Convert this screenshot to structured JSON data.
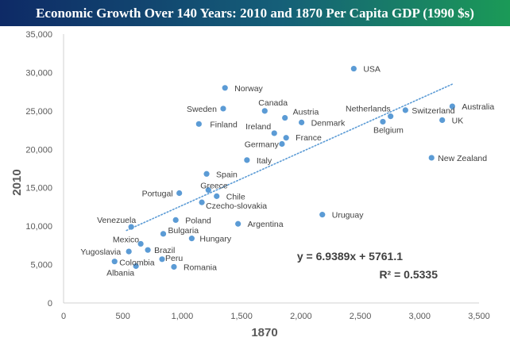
{
  "title": "Economic Growth Over 140 Years: 2010 and 1870 Per Capita GDP (1990 $s)",
  "colors": {
    "banner_start": "#0e2a66",
    "banner_end": "#1b9a57",
    "point": "#5b9bd5",
    "trend": "#5b9bd5",
    "axis_text": "#595959"
  },
  "chart_data": {
    "type": "scatter",
    "xlabel": "1870",
    "ylabel": "2010",
    "xlim": [
      0,
      3500
    ],
    "ylim": [
      0,
      35000
    ],
    "xticks": [
      0,
      500,
      1000,
      1500,
      2000,
      2500,
      3000,
      3500
    ],
    "yticks": [
      0,
      5000,
      10000,
      15000,
      20000,
      25000,
      30000,
      35000
    ],
    "x_tick_labels": [
      "0",
      "500",
      "1,000",
      "1,500",
      "2,000",
      "2,500",
      "3,000",
      "3,500"
    ],
    "y_tick_labels": [
      "0",
      "5,000",
      "10,000",
      "15,000",
      "20,000",
      "25,000",
      "30,000",
      "35,000"
    ],
    "grid": false,
    "legend": "none",
    "trendline": {
      "style": "dotted",
      "slope": 6.9389,
      "intercept": 5761.1,
      "x_range": [
        530,
        3280
      ],
      "equation": "y = 6.9389x + 5761.1",
      "r_squared": "R² = 0.5335"
    },
    "points": [
      {
        "label": "USA",
        "x": 2445,
        "y": 30500
      },
      {
        "label": "Norway",
        "x": 1360,
        "y": 28000
      },
      {
        "label": "Australia",
        "x": 3275,
        "y": 25600
      },
      {
        "label": "Sweden",
        "x": 1345,
        "y": 25300
      },
      {
        "label": "Switzerland",
        "x": 2880,
        "y": 25100
      },
      {
        "label": "Canada",
        "x": 1695,
        "y": 25000
      },
      {
        "label": "Netherlands",
        "x": 2755,
        "y": 24300
      },
      {
        "label": "Austria",
        "x": 1865,
        "y": 24100
      },
      {
        "label": "UK",
        "x": 3190,
        "y": 23800
      },
      {
        "label": "Belgium",
        "x": 2690,
        "y": 23600
      },
      {
        "label": "Denmark",
        "x": 2005,
        "y": 23500
      },
      {
        "label": "Finland",
        "x": 1140,
        "y": 23300
      },
      {
        "label": "Ireland",
        "x": 1775,
        "y": 22100
      },
      {
        "label": "France",
        "x": 1875,
        "y": 21500
      },
      {
        "label": "Germany",
        "x": 1840,
        "y": 20700
      },
      {
        "label": "New Zealand",
        "x": 3100,
        "y": 18900
      },
      {
        "label": "Italy",
        "x": 1545,
        "y": 18600
      },
      {
        "label": "Spain",
        "x": 1205,
        "y": 16800
      },
      {
        "label": "Greece",
        "x": 1220,
        "y": 14700
      },
      {
        "label": "Portugal",
        "x": 975,
        "y": 14300
      },
      {
        "label": "Chile",
        "x": 1290,
        "y": 13900
      },
      {
        "label": "Czecho-slovakia",
        "x": 1165,
        "y": 13100
      },
      {
        "label": "Uruguay",
        "x": 2180,
        "y": 11500
      },
      {
        "label": "Poland",
        "x": 945,
        "y": 10800
      },
      {
        "label": "Argentina",
        "x": 1470,
        "y": 10300
      },
      {
        "label": "Venezuela",
        "x": 570,
        "y": 9900
      },
      {
        "label": "Bulgaria",
        "x": 840,
        "y": 9000
      },
      {
        "label": "Hungary",
        "x": 1080,
        "y": 8400
      },
      {
        "label": "Mexico",
        "x": 650,
        "y": 7700
      },
      {
        "label": "Brazil",
        "x": 710,
        "y": 6900
      },
      {
        "label": "Yugoslavia",
        "x": 550,
        "y": 6700
      },
      {
        "label": "Peru",
        "x": 830,
        "y": 5700
      },
      {
        "label": "Colombia",
        "x": 430,
        "y": 5400
      },
      {
        "label": "Albania",
        "x": 610,
        "y": 4800
      },
      {
        "label": "Romania",
        "x": 930,
        "y": 4700
      }
    ]
  }
}
